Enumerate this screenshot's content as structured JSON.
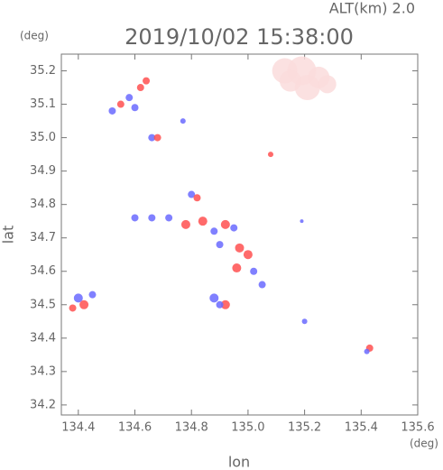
{
  "chart_data": {
    "type": "scatter",
    "title": "2019/10/02 15:38:00",
    "annotation": "ALT(km) 2.0",
    "x_unit": "(deg)",
    "y_unit": "(deg)",
    "x_label": "lon",
    "y_label": "lat",
    "xlim": [
      134.34,
      135.6
    ],
    "ylim": [
      34.17,
      35.25
    ],
    "xticks": [
      134.4,
      134.6,
      134.8,
      {
        "value": 135.0,
        "label": "135.0"
      },
      135.2,
      135.4,
      135.6
    ],
    "yticks": [
      34.2,
      34.3,
      34.4,
      34.5,
      34.6,
      34.7,
      34.8,
      34.9,
      {
        "value": 35.0,
        "label": "35.0"
      },
      35.1,
      35.2
    ],
    "x": [
      134.52,
      134.55,
      134.58,
      134.62,
      134.64,
      134.6,
      134.66,
      134.68,
      134.77,
      134.8,
      134.82,
      134.6,
      134.66,
      134.72,
      134.78,
      134.84,
      134.88,
      134.92,
      134.95,
      134.9,
      134.97,
      135.0,
      134.96,
      135.02,
      135.05,
      134.88,
      134.92,
      134.9,
      134.4,
      134.42,
      134.45,
      134.38,
      135.2,
      135.43,
      135.42,
      135.08,
      135.19,
      135.13,
      135.19,
      135.25,
      135.28,
      135.21,
      135.15
    ],
    "values": [
      35.08,
      35.1,
      35.12,
      35.15,
      35.17,
      35.09,
      35.0,
      35.0,
      35.05,
      34.83,
      34.82,
      34.76,
      34.76,
      34.76,
      34.74,
      34.75,
      34.72,
      34.74,
      34.73,
      34.68,
      34.67,
      34.65,
      34.61,
      34.6,
      34.56,
      34.52,
      34.5,
      34.5,
      34.52,
      34.5,
      34.53,
      34.49,
      34.45,
      34.37,
      34.36,
      34.95,
      34.75,
      35.2,
      35.2,
      35.18,
      35.16,
      35.15,
      35.17
    ],
    "sizes": [
      4,
      4,
      4,
      4,
      4,
      4,
      4,
      4,
      3,
      4,
      4,
      4,
      4,
      4,
      5,
      5,
      4,
      5,
      4,
      4,
      5,
      5,
      5,
      4,
      4,
      5,
      5,
      4,
      5,
      5,
      4,
      4,
      3,
      4,
      3,
      3,
      2,
      14,
      16,
      12,
      10,
      14,
      12
    ],
    "colors": [
      "#6a6aff",
      "#ff5050",
      "#6a6aff",
      "#ff5050",
      "#ff5050",
      "#6a6aff",
      "#6a6aff",
      "#ff5050",
      "#6a6aff",
      "#6a6aff",
      "#ff5050",
      "#6a6aff",
      "#6a6aff",
      "#6a6aff",
      "#ff5050",
      "#ff5050",
      "#6a6aff",
      "#ff5050",
      "#6a6aff",
      "#6a6aff",
      "#ff5050",
      "#ff5050",
      "#ff5050",
      "#6a6aff",
      "#6a6aff",
      "#6a6aff",
      "#ff5050",
      "#6a6aff",
      "#6a6aff",
      "#ff5050",
      "#6a6aff",
      "#ff5050",
      "#6a6aff",
      "#ff5050",
      "#6a6aff",
      "#ff5050",
      "#6a6aff",
      "#fadcdc",
      "#fadcdc",
      "#fadcdc",
      "#fadcdc",
      "#fadcdc",
      "#fadcdc"
    ]
  }
}
